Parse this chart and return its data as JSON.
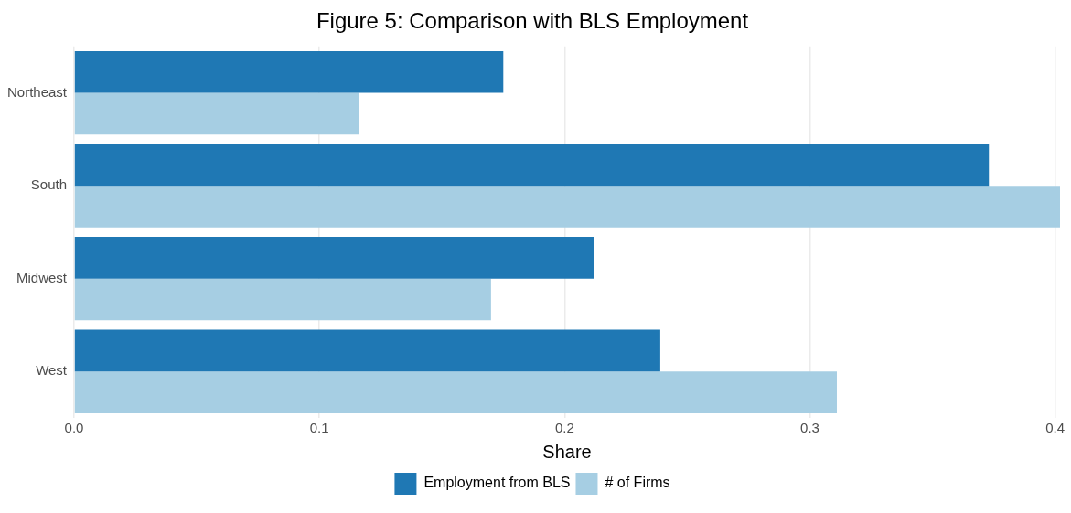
{
  "chart_data": {
    "type": "bar",
    "orientation": "horizontal",
    "title": "Figure 5: Comparison with BLS Employment",
    "xlabel": "Share",
    "categories": [
      "Northeast",
      "South",
      "Midwest",
      "West"
    ],
    "series": [
      {
        "name": "Employment from BLS",
        "color": "#1f78b4",
        "values": [
          0.175,
          0.373,
          0.212,
          0.239
        ]
      },
      {
        "name": "# of Firms",
        "color": "#a6cee3",
        "values": [
          0.116,
          0.402,
          0.17,
          0.311
        ]
      }
    ],
    "xlim": [
      0,
      0.402
    ],
    "xticks": [
      {
        "value": 0,
        "label": "0.0"
      },
      0.1,
      0.2,
      0.3,
      0.4
    ],
    "grid": "x",
    "legend": "bottom"
  }
}
